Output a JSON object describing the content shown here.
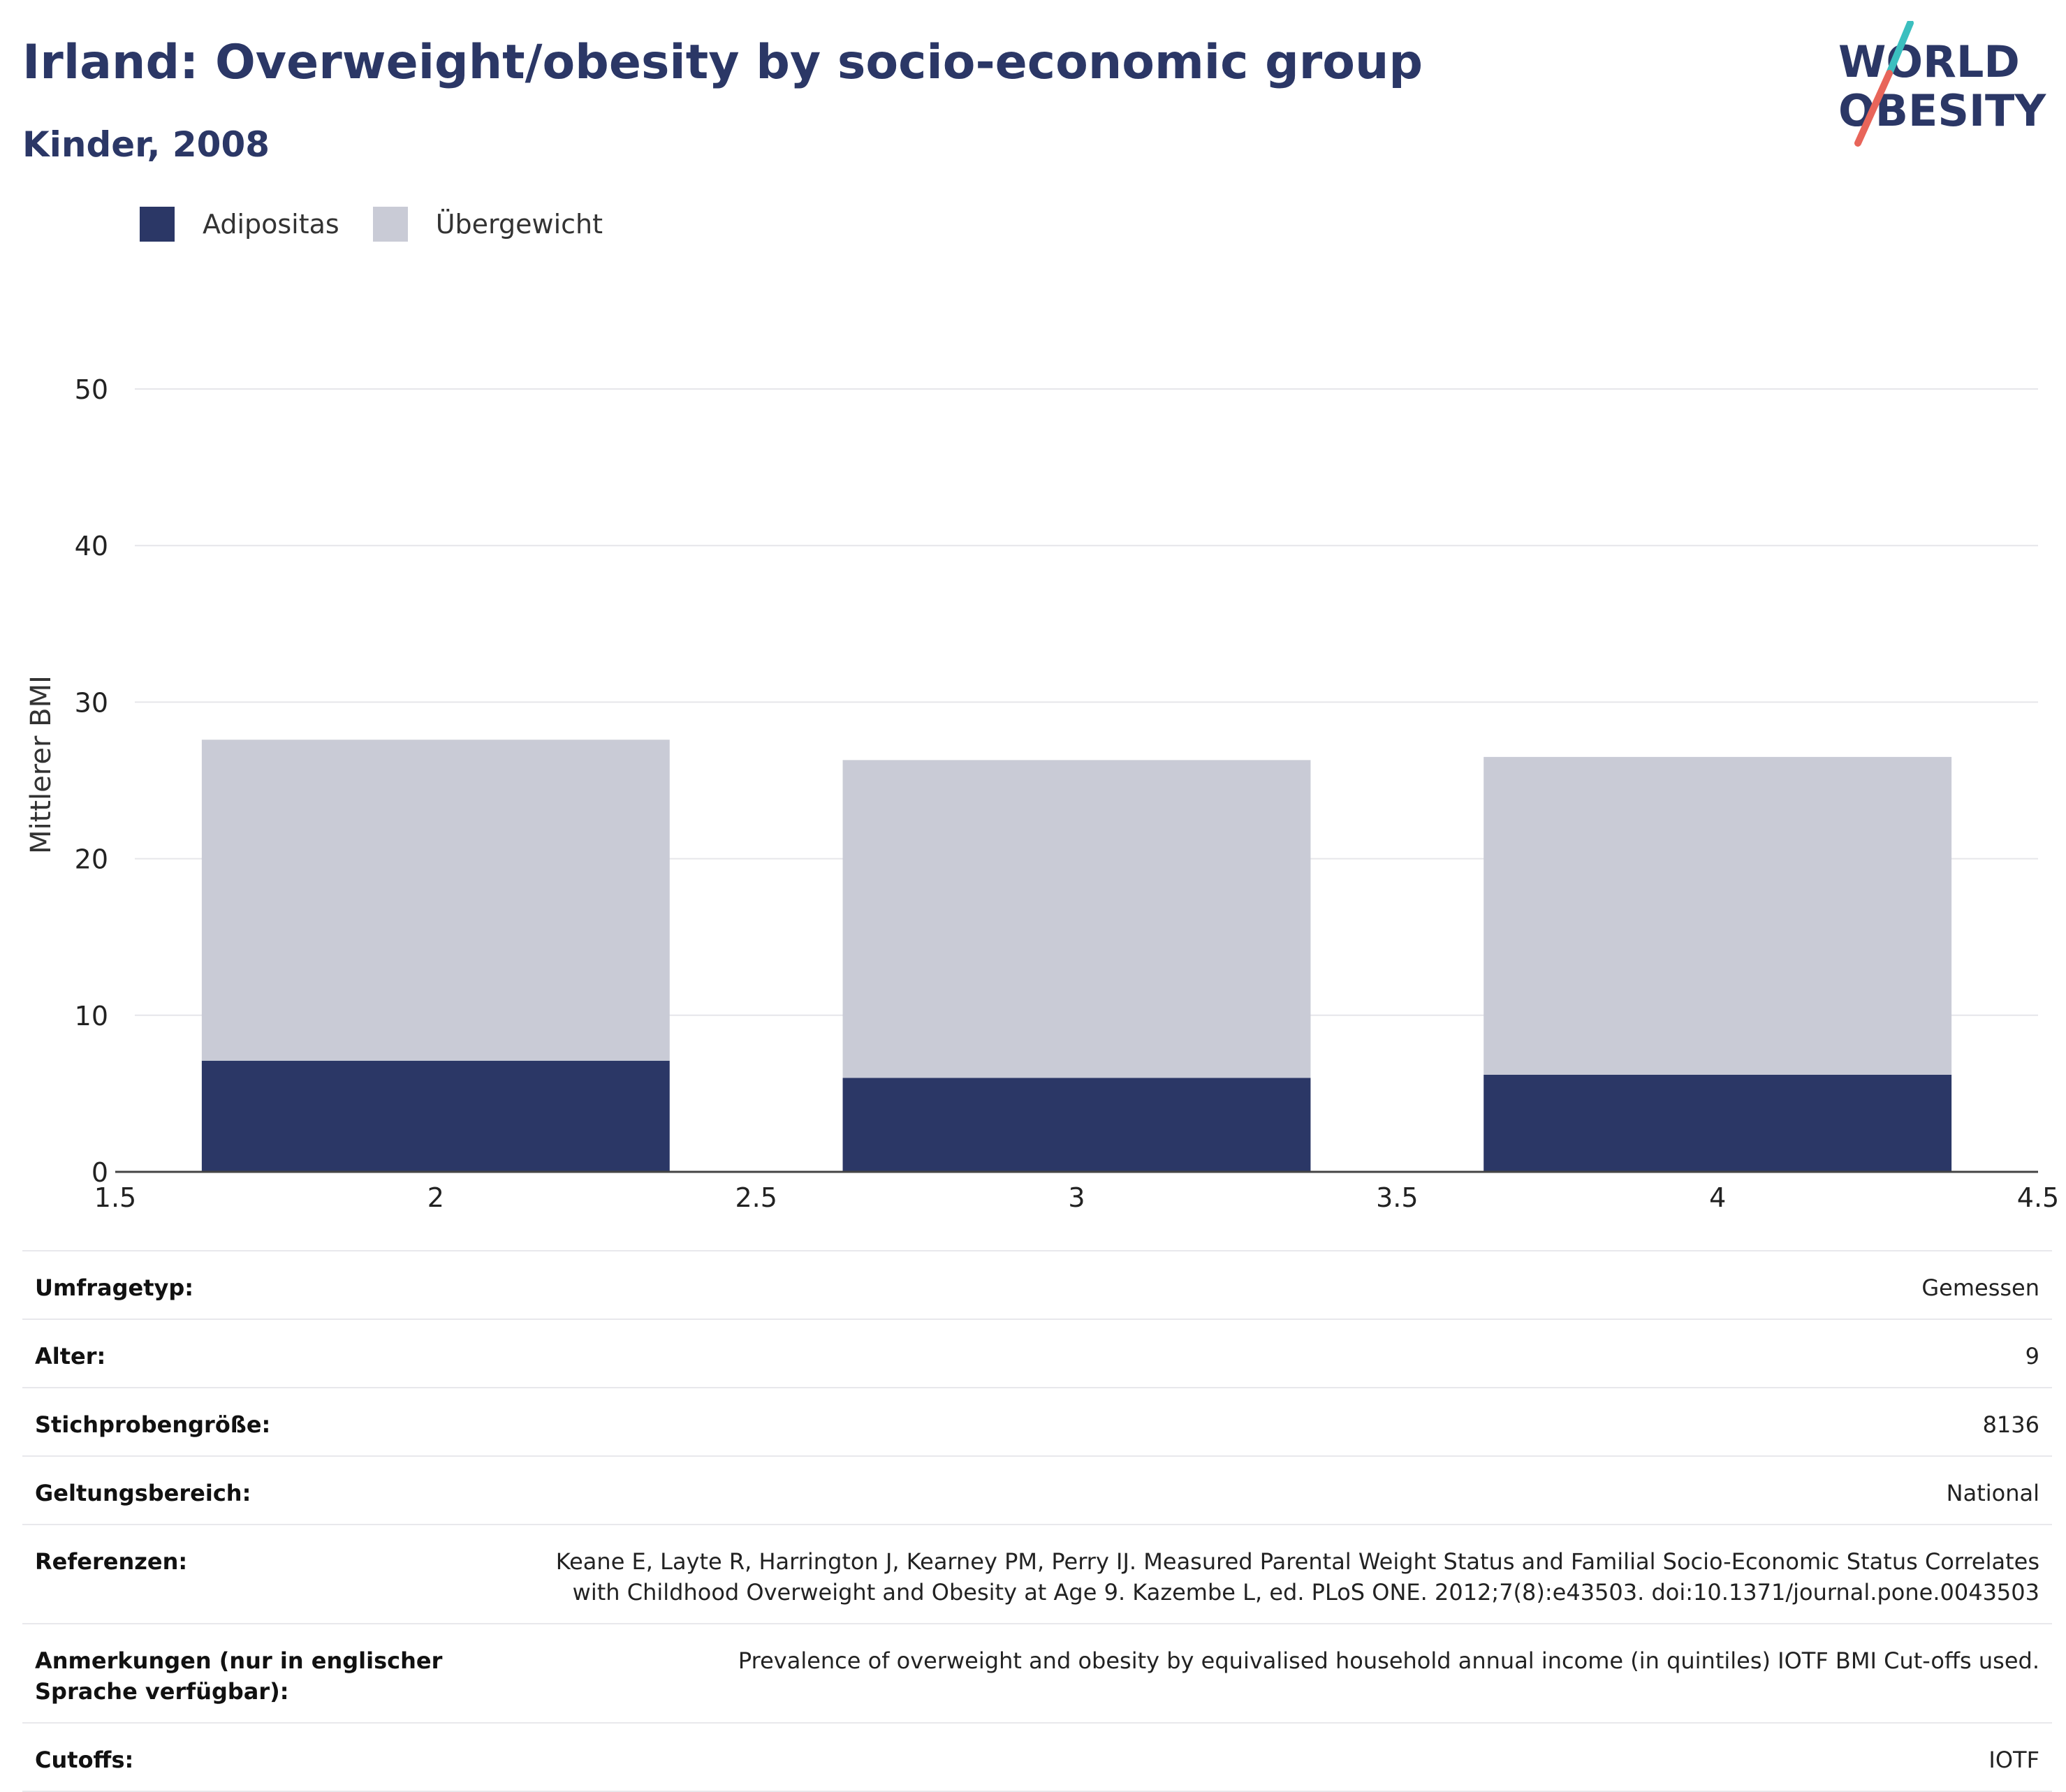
{
  "header": {
    "title": "Irland: Overweight/obesity by socio-economic group",
    "subtitle": "Kinder, 2008"
  },
  "logo": {
    "line1": "WORLD",
    "line2": "OBESITY",
    "colors": {
      "text": "#2b3766",
      "slash_top": "#3bbfbf",
      "slash_bottom": "#e8655a"
    }
  },
  "legend": [
    {
      "label": "Adipositas",
      "color": "#2b3766"
    },
    {
      "label": "Übergewicht",
      "color": "#c9cbd6"
    }
  ],
  "chart_data": {
    "type": "bar",
    "stacked": true,
    "x": [
      2,
      3,
      4
    ],
    "series": [
      {
        "name": "Adipositas",
        "color": "#2b3766",
        "values": [
          7.1,
          6.0,
          6.2
        ]
      },
      {
        "name": "Übergewicht",
        "color": "#c9cbd6",
        "values": [
          20.5,
          20.3,
          20.3
        ]
      }
    ],
    "ylabel": "Mittlerer BMI",
    "xlim": [
      1.5,
      4.5
    ],
    "ylim": [
      0,
      50
    ],
    "yticks": [
      0,
      10,
      20,
      30,
      40,
      50
    ],
    "xticks": [
      "1.5",
      "2",
      "2.5",
      "3",
      "3.5",
      "4",
      "4.5"
    ],
    "xtick_values": [
      1.5,
      2,
      2.5,
      3,
      3.5,
      4,
      4.5
    ],
    "grid": true,
    "legend_position": "top-left"
  },
  "meta": [
    {
      "key": "Umfragetyp:",
      "value": "Gemessen"
    },
    {
      "key": "Alter:",
      "value": "9"
    },
    {
      "key": "Stichprobengröße:",
      "value": "8136"
    },
    {
      "key": "Geltungsbereich:",
      "value": "National"
    },
    {
      "key": "Referenzen:",
      "value": "Keane E, Layte R, Harrington J, Kearney PM, Perry IJ. Measured Parental Weight Status and Familial Socio-Economic Status Correlates with Childhood Overweight and Obesity at Age 9. Kazembe L, ed. PLoS ONE. 2012;7(8):e43503. doi:10.1371/journal.pone.0043503"
    },
    {
      "key": "Anmerkungen (nur in englischer Sprache verfügbar):",
      "value": "Prevalence of overweight and obesity by equivalised household annual income (in quintiles) IOTF BMI Cut-offs used."
    },
    {
      "key": "Cutoffs:",
      "value": "IOTF"
    }
  ]
}
